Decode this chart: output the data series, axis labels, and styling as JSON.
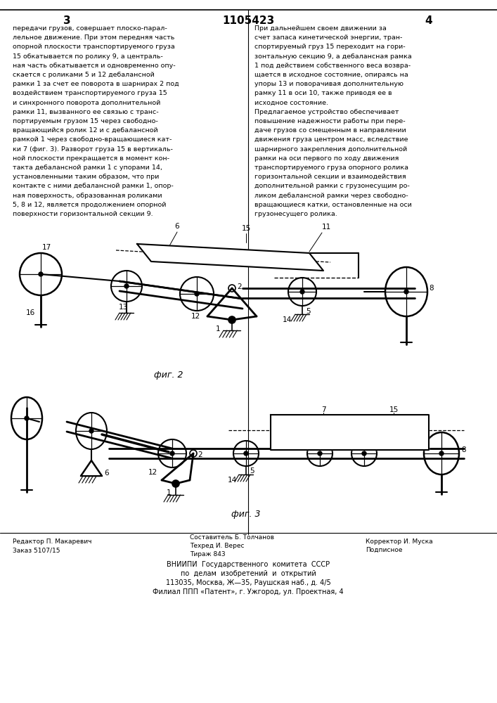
{
  "page_width": 7.07,
  "page_height": 10.0,
  "bg_color": "#ffffff",
  "page_num_left": "3",
  "page_num_center": "1105423",
  "page_num_right": "4",
  "left_col_text": [
    "передачи грузов, совершает плоско-парал-",
    "лельное движение. При этом передняя часть",
    "опорной плоскости транспортируемого груза",
    "15 обкатывается по ролику 9, а централь-",
    "ная часть обкатывается и одновременно опу-",
    "скается с роликами 5 и 12 дебалансной",
    "рамки 1 за счет ее поворота в шарнирах 2 под",
    "воздействием транспортируемого груза 15",
    "и синхронного поворота дополнительной",
    "рамки 11, вызванного ее связью с транс-",
    "портируемым грузом 15 через свободно-",
    "вращающийся ролик 12 и с дебалансной",
    "рамкой 1 через свободно-вращающиеся кат-",
    "ки 7 (фиг. 3). Разворот груза 15 в вертикаль-",
    "ной плоскости прекращается в момент кон-",
    "такта дебалансной рамки 1 с упорами 14,",
    "установленными таким образом, что при",
    "контакте с ними дебалансной рамки 1, опор-",
    "ная поверхность, образованная роликами",
    "5, 8 и 12, является продолжением опорной",
    "поверхности горизонтальной секции 9."
  ],
  "right_col_text": [
    "При дальнейшем своем движении за",
    "счет запаса кинетической энергии, тран-",
    "спортируемый груз 15 переходит на гори-",
    "зонтальную секцию 9, а дебалансная рамка",
    "1 под действием собственного веса возвра-",
    "щается в исходное состояние, опираясь на",
    "упоры 13 и поворачивая дополнительную",
    "рамку 11 в оси 10, также приводя ее в",
    "исходное состояние.",
    "Предлагаемое устройство обеспечивает",
    "повышение надежности работы при пере-",
    "даче грузов со смещенным в направлении",
    "движения груза центром масс, вследствие",
    "шарнирного закрепления дополнительной",
    "рамки на оси первого по ходу движения",
    "транспортируемого груза опорного ролика",
    "горизонтальной секции и взаимодействия",
    "дополнительной рамки с грузонесущим ро-",
    "ликом дебалансной рамки через свободно-",
    "вращающиеся катки, остановленные на оси",
    "грузонесущего ролика."
  ],
  "fig2_caption": "фиг. 2",
  "fig3_caption": "фиг. 3",
  "footer_left1": "Редактор П. Макаревич",
  "footer_left2": "Заказ 5107/15",
  "footer_center1": "Составитель Б. Толчанов",
  "footer_center2": "Техред И. Верес",
  "footer_center3": "Тираж 843",
  "footer_right1": "Корректор И. Муска",
  "footer_right2": "Подписное",
  "footer_vniipii": "ВНИИПИ  Государственного  комитета  СССР",
  "footer_po_delam": "по  делам  изобретений  и  открытий",
  "footer_addr1": "113035, Москва, Ж—35, Раушская наб., д. 4/5",
  "footer_addr2": "Филиал ППП «Патент», г. Ужгород, ул. Проектная, 4"
}
